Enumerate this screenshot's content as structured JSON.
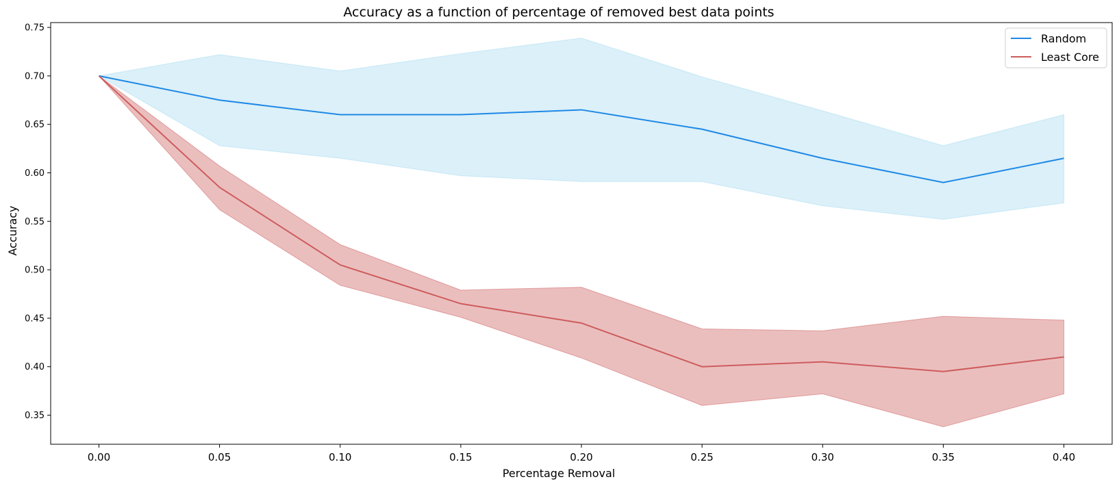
{
  "chart_data": {
    "type": "line",
    "title": "Accuracy as a function of percentage of removed best data points",
    "xlabel": "Percentage Removal",
    "ylabel": "Accuracy",
    "x": [
      0.0,
      0.05,
      0.1,
      0.15,
      0.2,
      0.25,
      0.3,
      0.35,
      0.4
    ],
    "xlim": [
      -0.02,
      0.42
    ],
    "ylim": [
      0.32,
      0.755
    ],
    "xticks": [
      0.0,
      0.05,
      0.1,
      0.15,
      0.2,
      0.25,
      0.3,
      0.35,
      0.4
    ],
    "xtick_labels": [
      "0.00",
      "0.05",
      "0.10",
      "0.15",
      "0.20",
      "0.25",
      "0.30",
      "0.35",
      "0.40"
    ],
    "yticks": [
      0.35,
      0.4,
      0.45,
      0.5,
      0.55,
      0.6,
      0.65,
      0.7,
      0.75
    ],
    "ytick_labels": [
      "0.35",
      "0.40",
      "0.45",
      "0.50",
      "0.55",
      "0.60",
      "0.65",
      "0.70",
      "0.75"
    ],
    "grid": false,
    "legend_position": "top-right",
    "series": [
      {
        "name": "Random",
        "color": "#1e88e5",
        "band_color": "#87ceeb",
        "values": [
          0.7,
          0.675,
          0.66,
          0.66,
          0.665,
          0.645,
          0.615,
          0.59,
          0.615
        ],
        "lower": [
          0.7,
          0.628,
          0.615,
          0.597,
          0.591,
          0.591,
          0.566,
          0.552,
          0.569
        ],
        "upper": [
          0.7,
          0.722,
          0.705,
          0.723,
          0.739,
          0.699,
          0.664,
          0.628,
          0.66
        ]
      },
      {
        "name": "Least Core",
        "color": "#cd5c5c",
        "band_color": "#cd5c5c",
        "values": [
          0.7,
          0.585,
          0.505,
          0.465,
          0.445,
          0.4,
          0.405,
          0.395,
          0.41
        ],
        "lower": [
          0.7,
          0.562,
          0.484,
          0.451,
          0.409,
          0.36,
          0.372,
          0.338,
          0.372
        ],
        "upper": [
          0.7,
          0.607,
          0.526,
          0.479,
          0.482,
          0.439,
          0.437,
          0.452,
          0.448
        ]
      }
    ]
  }
}
